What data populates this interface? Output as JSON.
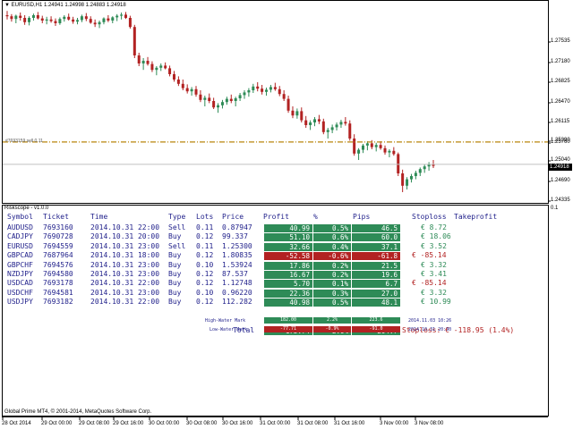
{
  "chart": {
    "symbol_header": "EURUSD,H1  1.24941 1.24998 1.24883 1.24918",
    "hline_label": "#7693159 sell 0.11",
    "current_price_tag": "1.24918",
    "price_labels": [
      "1.27535",
      "1.27180",
      "1.26825",
      "1.26470",
      "1.26115",
      "1.25760",
      "1.25390",
      "1.25040",
      "1.24918",
      "1.24690",
      "1.24335"
    ],
    "hline_price": 1.25335,
    "current_price": 1.24918,
    "price_scale": {
      "min": 1.2425,
      "max": 1.2775
    },
    "candles": [
      [
        1.277,
        1.2778,
        1.2762,
        1.2768
      ],
      [
        1.2768,
        1.2772,
        1.2758,
        1.2763
      ],
      [
        1.2763,
        1.2771,
        1.2755,
        1.2769
      ],
      [
        1.2769,
        1.2775,
        1.276,
        1.2765
      ],
      [
        1.2765,
        1.277,
        1.2752,
        1.2757
      ],
      [
        1.2757,
        1.2768,
        1.2751,
        1.2765
      ],
      [
        1.2765,
        1.2773,
        1.276,
        1.277
      ],
      [
        1.277,
        1.2776,
        1.2762,
        1.2764
      ],
      [
        1.2764,
        1.2769,
        1.2755,
        1.276
      ],
      [
        1.276,
        1.2767,
        1.2753,
        1.2762
      ],
      [
        1.2762,
        1.2768,
        1.2756,
        1.2759
      ],
      [
        1.2759,
        1.2764,
        1.275,
        1.2755
      ],
      [
        1.2755,
        1.2766,
        1.2752,
        1.2763
      ],
      [
        1.2763,
        1.277,
        1.2758,
        1.2767
      ],
      [
        1.2767,
        1.2773,
        1.276,
        1.2762
      ],
      [
        1.2762,
        1.2767,
        1.2754,
        1.2758
      ],
      [
        1.2758,
        1.2765,
        1.2753,
        1.2761
      ],
      [
        1.2761,
        1.2771,
        1.2757,
        1.2768
      ],
      [
        1.2768,
        1.2774,
        1.2759,
        1.2763
      ],
      [
        1.2763,
        1.2768,
        1.2754,
        1.2756
      ],
      [
        1.2756,
        1.2762,
        1.2748,
        1.2753
      ],
      [
        1.2753,
        1.276,
        1.2746,
        1.2757
      ],
      [
        1.2757,
        1.2766,
        1.2753,
        1.2764
      ],
      [
        1.2764,
        1.277,
        1.2757,
        1.276
      ],
      [
        1.276,
        1.2768,
        1.2755,
        1.2766
      ],
      [
        1.2766,
        1.2772,
        1.2759,
        1.2769
      ],
      [
        1.2769,
        1.2775,
        1.2762,
        1.2771
      ],
      [
        1.2771,
        1.2776,
        1.2763,
        1.2765
      ],
      [
        1.2765,
        1.2769,
        1.2745,
        1.2748
      ],
      [
        1.2748,
        1.2752,
        1.269,
        1.2695
      ],
      [
        1.2695,
        1.27,
        1.2675,
        1.268
      ],
      [
        1.268,
        1.269,
        1.2668,
        1.2685
      ],
      [
        1.2685,
        1.2692,
        1.2676,
        1.2679
      ],
      [
        1.2679,
        1.2684,
        1.2664,
        1.2668
      ],
      [
        1.2668,
        1.2675,
        1.2658,
        1.2672
      ],
      [
        1.2672,
        1.268,
        1.2666,
        1.2676
      ],
      [
        1.2676,
        1.2682,
        1.2669,
        1.2671
      ],
      [
        1.2671,
        1.2676,
        1.2656,
        1.266
      ],
      [
        1.266,
        1.2666,
        1.2646,
        1.265
      ],
      [
        1.265,
        1.2656,
        1.2638,
        1.2642
      ],
      [
        1.2642,
        1.265,
        1.263,
        1.2634
      ],
      [
        1.2634,
        1.2641,
        1.2624,
        1.2628
      ],
      [
        1.2628,
        1.2636,
        1.262,
        1.2632
      ],
      [
        1.2632,
        1.2638,
        1.2618,
        1.2622
      ],
      [
        1.2622,
        1.263,
        1.2608,
        1.2612
      ],
      [
        1.2612,
        1.262,
        1.26,
        1.2616
      ],
      [
        1.2616,
        1.2624,
        1.2606,
        1.261
      ],
      [
        1.261,
        1.2616,
        1.2595,
        1.2598
      ],
      [
        1.2598,
        1.2606,
        1.2588,
        1.2602
      ],
      [
        1.2602,
        1.2612,
        1.2596,
        1.2608
      ],
      [
        1.2608,
        1.2618,
        1.2603,
        1.2614
      ],
      [
        1.2614,
        1.2622,
        1.2606,
        1.261
      ],
      [
        1.261,
        1.2618,
        1.26,
        1.2615
      ],
      [
        1.2615,
        1.2625,
        1.261,
        1.2621
      ],
      [
        1.2621,
        1.263,
        1.2614,
        1.2626
      ],
      [
        1.2626,
        1.2634,
        1.2618,
        1.263
      ],
      [
        1.263,
        1.2642,
        1.2625,
        1.2637
      ],
      [
        1.2637,
        1.2645,
        1.2628,
        1.2633
      ],
      [
        1.2633,
        1.264,
        1.2622,
        1.2627
      ],
      [
        1.2627,
        1.2635,
        1.262,
        1.2631
      ],
      [
        1.2631,
        1.264,
        1.2626,
        1.2636
      ],
      [
        1.2636,
        1.2644,
        1.2629,
        1.2632
      ],
      [
        1.2632,
        1.2638,
        1.2619,
        1.2623
      ],
      [
        1.2623,
        1.263,
        1.261,
        1.2614
      ],
      [
        1.2614,
        1.262,
        1.2588,
        1.2592
      ],
      [
        1.2592,
        1.26,
        1.2578,
        1.2583
      ],
      [
        1.2583,
        1.2596,
        1.2577,
        1.2591
      ],
      [
        1.2591,
        1.2598,
        1.257,
        1.2574
      ],
      [
        1.2574,
        1.2582,
        1.256,
        1.2565
      ],
      [
        1.2565,
        1.2574,
        1.2556,
        1.257
      ],
      [
        1.257,
        1.258,
        1.2563,
        1.2576
      ],
      [
        1.2576,
        1.2584,
        1.2567,
        1.2572
      ],
      [
        1.2572,
        1.2577,
        1.2548,
        1.2552
      ],
      [
        1.2552,
        1.256,
        1.254,
        1.2556
      ],
      [
        1.2556,
        1.2566,
        1.255,
        1.2561
      ],
      [
        1.2561,
        1.257,
        1.2555,
        1.2566
      ],
      [
        1.2566,
        1.2575,
        1.256,
        1.2571
      ],
      [
        1.2571,
        1.258,
        1.2564,
        1.2568
      ],
      [
        1.2568,
        1.2574,
        1.2536,
        1.254
      ],
      [
        1.254,
        1.2548,
        1.2508,
        1.2512
      ],
      [
        1.2512,
        1.2522,
        1.25,
        1.2519
      ],
      [
        1.2519,
        1.253,
        1.2513,
        1.2527
      ],
      [
        1.2527,
        1.2535,
        1.2518,
        1.2531
      ],
      [
        1.2531,
        1.2537,
        1.252,
        1.2524
      ],
      [
        1.2524,
        1.2532,
        1.2516,
        1.2528
      ],
      [
        1.2528,
        1.2535,
        1.2519,
        1.2522
      ],
      [
        1.2522,
        1.2527,
        1.251,
        1.2514
      ],
      [
        1.2514,
        1.252,
        1.2505,
        1.2517
      ],
      [
        1.2517,
        1.2524,
        1.2508,
        1.2511
      ],
      [
        1.2511,
        1.2514,
        1.247,
        1.2475
      ],
      [
        1.2475,
        1.2482,
        1.244,
        1.2452
      ],
      [
        1.2452,
        1.2468,
        1.2445,
        1.2464
      ],
      [
        1.2464,
        1.2474,
        1.2458,
        1.247
      ],
      [
        1.247,
        1.248,
        1.2464,
        1.2476
      ],
      [
        1.2476,
        1.2486,
        1.247,
        1.2483
      ],
      [
        1.2483,
        1.2492,
        1.2476,
        1.2488
      ],
      [
        1.2488,
        1.2496,
        1.248,
        1.2492
      ],
      [
        1.2492,
        1.25,
        1.2485,
        1.2489
      ]
    ],
    "date_labels": [
      "28 Oct 2014",
      "29 Oct 00:00",
      "29 Oct 08:00",
      "29 Oct 16:00",
      "30 Oct 00:00",
      "30 Oct 08:00",
      "30 Oct 16:00",
      "31 Oct 00:00",
      "31 Oct 08:00",
      "31 Oct 16:00",
      "3 Nov 00:00",
      "3 Nov 08:00"
    ],
    "colors": {
      "bull": "#2e8b57",
      "bear": "#b22222",
      "hline": "#b8860b",
      "grid": "#000000"
    }
  },
  "panel": {
    "title": "Riskscope - v1.0.0",
    "right_scale_top": "0.1",
    "copyright": "Global Prime MT4, © 2001-2014, MetaQuotes Software Corp.",
    "headers": {
      "symbol": "Symbol",
      "ticket": "Ticket",
      "time": "Time",
      "type": "Type",
      "lots": "Lots",
      "price": "Price",
      "profit": "Profit",
      "percent": "%",
      "pips": "Pips",
      "stoploss": "Stoploss",
      "takeprofit": "Takeprofit"
    },
    "rows": [
      {
        "symbol": "AUDUSD",
        "ticket": "7693160",
        "time": "2014.10.31 22:00",
        "type": "Sell",
        "lots": "0.11",
        "price": "0.87947",
        "profit": "40.99",
        "percent": "0.5%",
        "pips": "46.5",
        "stoploss": "€ 8.72",
        "positive": true
      },
      {
        "symbol": "CADJPY",
        "ticket": "7690728",
        "time": "2014.10.31 20:00",
        "type": "Buy",
        "lots": "0.12",
        "price": "99.337",
        "profit": "51.10",
        "percent": "0.6%",
        "pips": "60.0",
        "stoploss": "€ 18.06",
        "positive": true
      },
      {
        "symbol": "EURUSD",
        "ticket": "7694559",
        "time": "2014.10.31 23:00",
        "type": "Sell",
        "lots": "0.11",
        "price": "1.25300",
        "profit": "32.66",
        "percent": "0.4%",
        "pips": "37.1",
        "stoploss": "€ 3.52",
        "positive": true
      },
      {
        "symbol": "GBPCAD",
        "ticket": "7687964",
        "time": "2014.10.31 18:00",
        "type": "Buy",
        "lots": "0.12",
        "price": "1.80835",
        "profit": "-52.58",
        "percent": "-0.6%",
        "pips": "-61.8",
        "stoploss": "€ -85.14",
        "positive": false
      },
      {
        "symbol": "GBPCHF",
        "ticket": "7694576",
        "time": "2014.10.31 23:00",
        "type": "Buy",
        "lots": "0.10",
        "price": "1.53924",
        "profit": "17.86",
        "percent": "0.2%",
        "pips": "21.5",
        "stoploss": "€ 3.32",
        "positive": true
      },
      {
        "symbol": "NZDJPY",
        "ticket": "7694580",
        "time": "2014.10.31 23:00",
        "type": "Buy",
        "lots": "0.12",
        "price": "87.537",
        "profit": "16.67",
        "percent": "0.2%",
        "pips": "19.6",
        "stoploss": "€ 3.41",
        "positive": true
      },
      {
        "symbol": "USDCAD",
        "ticket": "7693178",
        "time": "2014.10.31 22:00",
        "type": "Buy",
        "lots": "0.12",
        "price": "1.12748",
        "profit": "5.70",
        "percent": "0.1%",
        "pips": "6.7",
        "stoploss": "€ -85.14",
        "positive": true
      },
      {
        "symbol": "USDCHF",
        "ticket": "7694581",
        "time": "2014.10.31 23:00",
        "type": "Buy",
        "lots": "0.10",
        "price": "0.96220",
        "profit": "22.36",
        "percent": "0.3%",
        "pips": "27.0",
        "stoploss": "€ 3.32",
        "positive": true
      },
      {
        "symbol": "USDJPY",
        "ticket": "7693182",
        "time": "2014.10.31 22:00",
        "type": "Buy",
        "lots": "0.12",
        "price": "112.282",
        "profit": "40.98",
        "percent": "0.5%",
        "pips": "48.1",
        "stoploss": "€ 10.99",
        "positive": true
      }
    ],
    "total": {
      "label": "Total",
      "profit": "175.74",
      "percent": "2.0%",
      "pips": "204.7",
      "stoploss": "Stoploss: € -118.95 (1.4%)"
    },
    "high_water": {
      "label": "High-Water Mark",
      "profit": "182.00",
      "percent": "2.2%",
      "pips": "223.6",
      "time": "2014.11.03 10:26"
    },
    "low_water": {
      "label": "Low-Water Mark",
      "profit": "-77.71",
      "percent": "-0.9%",
      "pips": "-91.0",
      "time": "2014.10.31 20:30"
    }
  }
}
